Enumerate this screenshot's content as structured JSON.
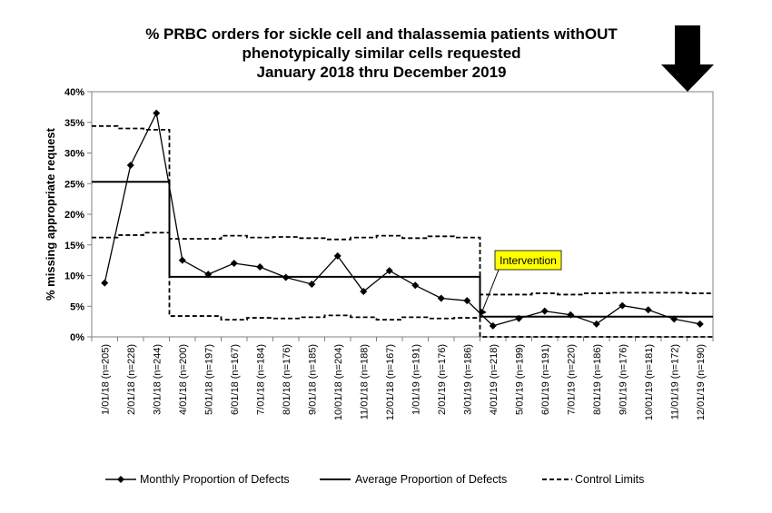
{
  "chart_data": {
    "type": "line",
    "title_lines": [
      "% PRBC orders for sickle cell and thalassemia patients withOUT",
      "phenotypically similar cells requested",
      "January 2018 thru December 2019"
    ],
    "ylabel": "% missing appropriate request",
    "xlabel": "",
    "ylim": [
      0,
      40
    ],
    "yticks": [
      0,
      5,
      10,
      15,
      20,
      25,
      30,
      35,
      40
    ],
    "ytick_labels": [
      "0%",
      "5%",
      "10%",
      "15%",
      "20%",
      "25%",
      "30%",
      "35%",
      "40%"
    ],
    "grid": false,
    "legend_position": "bottom",
    "categories": [
      "1/01/18 (n=205)",
      "2/01/18 (n=228)",
      "3/01/18 (n=244)",
      "4/01/18 (n=200)",
      "5/01/18 (n=197)",
      "6/01/18 (n=167)",
      "7/01/18 (n=184)",
      "8/01/18 (n=176)",
      "9/01/18 (n=185)",
      "10/01/18 (n=204)",
      "11/01/18 (n=188)",
      "12/01/18 (n=167)",
      "1/01/19 (n=191)",
      "2/01/19 (n=176)",
      "3/01/19 (n=186)",
      "4/01/19 (n=218)",
      "5/01/19 (n=199)",
      "6/01/19 (n=191)",
      "7/01/19 (n=220)",
      "8/01/19 (n=186)",
      "9/01/19 (n=176)",
      "10/01/19 (n=181)",
      "11/01/19 (n=172)",
      "12/01/19 (n=190)"
    ],
    "series": [
      {
        "name": "Monthly Proportion of Defects",
        "style": "solid-marker",
        "values": [
          8.8,
          28.0,
          36.5,
          12.5,
          10.2,
          12.0,
          11.4,
          9.7,
          8.6,
          13.2,
          7.4,
          10.8,
          8.4,
          6.3,
          5.9,
          1.8,
          3.0,
          4.2,
          3.6,
          2.1,
          5.1,
          4.4,
          2.9,
          2.1
        ]
      },
      {
        "name": "Average Proportion of Defects",
        "style": "solid-step",
        "values": [
          25.3,
          25.3,
          25.3,
          9.8,
          9.8,
          9.8,
          9.8,
          9.8,
          9.8,
          9.8,
          9.8,
          9.8,
          9.8,
          9.8,
          9.8,
          3.3,
          3.3,
          3.3,
          3.3,
          3.3,
          3.3,
          3.3,
          3.3,
          3.3
        ]
      },
      {
        "name": "Control Limits",
        "style": "dashed-step",
        "upper": [
          34.4,
          34.0,
          33.8,
          16.0,
          16.0,
          16.5,
          16.2,
          16.3,
          16.1,
          15.9,
          16.2,
          16.5,
          16.1,
          16.4,
          16.2,
          6.9,
          6.9,
          7.1,
          6.9,
          7.1,
          7.2,
          7.2,
          7.2,
          7.1
        ],
        "lower": [
          16.2,
          16.6,
          17.0,
          3.4,
          3.4,
          2.8,
          3.1,
          3.0,
          3.2,
          3.5,
          3.2,
          2.8,
          3.2,
          3.0,
          3.1,
          0.0,
          0.0,
          0.0,
          0.0,
          0.0,
          0.0,
          0.0,
          0.0,
          0.0
        ]
      }
    ],
    "annotations": [
      {
        "text": "Intervention",
        "category_index": 15,
        "background": "#ffff00"
      },
      {
        "text": "",
        "shape": "down-arrow",
        "category_index": 22,
        "color": "#000000"
      }
    ]
  }
}
